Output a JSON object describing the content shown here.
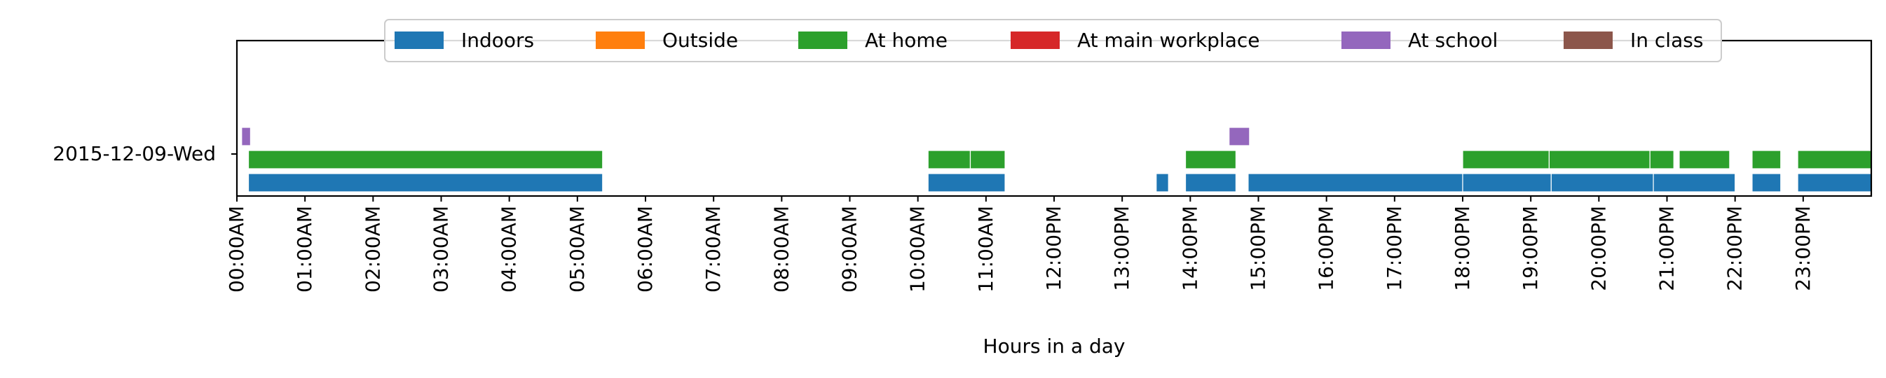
{
  "chart_data": {
    "type": "timeline",
    "xlabel": "Hours in a day",
    "row_label": "2015-12-09-Wed",
    "xlim": [
      0,
      24
    ],
    "x_ticks": [
      "00:00AM",
      "01:00AM",
      "02:00AM",
      "03:00AM",
      "04:00AM",
      "05:00AM",
      "06:00AM",
      "07:00AM",
      "08:00AM",
      "09:00AM",
      "10:00AM",
      "11:00AM",
      "12:00PM",
      "13:00PM",
      "14:00PM",
      "15:00PM",
      "16:00PM",
      "17:00PM",
      "18:00PM",
      "19:00PM",
      "20:00PM",
      "21:00PM",
      "22:00PM",
      "23:00PM"
    ],
    "legend_position": "top-center",
    "series": [
      {
        "name": "Indoors",
        "color": "#1f77b4",
        "lane": 0,
        "intervals": [
          [
            0.17,
            5.37
          ],
          [
            10.15,
            11.28
          ],
          [
            13.5,
            13.68
          ],
          [
            13.93,
            14.67
          ],
          [
            14.85,
            18.0
          ],
          [
            18.0,
            19.3
          ],
          [
            19.3,
            20.8
          ],
          [
            20.8,
            22.0
          ],
          [
            22.25,
            22.67
          ],
          [
            22.92,
            24.0
          ]
        ]
      },
      {
        "name": "Outside",
        "color": "#ff7f0e",
        "lane": 1,
        "intervals": []
      },
      {
        "name": "At home",
        "color": "#2ca02c",
        "lane": 1,
        "intervals": [
          [
            0.17,
            5.37
          ],
          [
            10.15,
            10.77
          ],
          [
            10.77,
            11.28
          ],
          [
            13.93,
            14.67
          ],
          [
            18.0,
            19.27
          ],
          [
            19.27,
            20.75
          ],
          [
            20.75,
            21.1
          ],
          [
            21.18,
            21.92
          ],
          [
            22.25,
            22.67
          ],
          [
            22.92,
            24.0
          ]
        ]
      },
      {
        "name": "At main workplace",
        "color": "#d62728",
        "lane": 2,
        "intervals": []
      },
      {
        "name": "At school",
        "color": "#9467bd",
        "lane": 2,
        "intervals": [
          [
            0.07,
            0.2
          ],
          [
            14.57,
            14.87
          ]
        ]
      },
      {
        "name": "In class",
        "color": "#8c564b",
        "lane": 3,
        "intervals": []
      }
    ]
  }
}
